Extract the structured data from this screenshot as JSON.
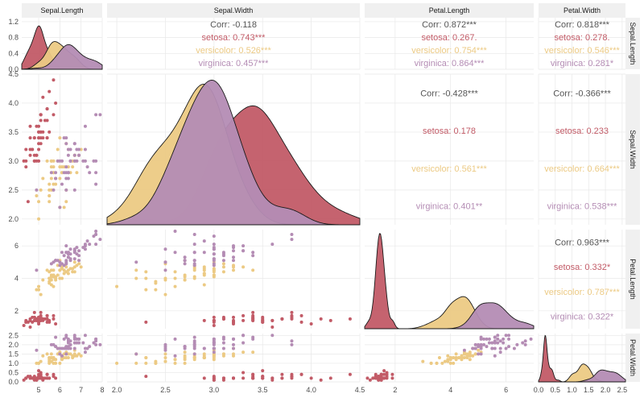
{
  "chart_data": {
    "type": "scatter-matrix",
    "variables": [
      "Sepal.Length",
      "Sepal.Width",
      "Petal.Length",
      "Petal.Width"
    ],
    "groups": [
      {
        "name": "setosa",
        "color": "#c25b67"
      },
      {
        "name": "versicolor",
        "color": "#ecca84"
      },
      {
        "name": "virginica",
        "color": "#b48cb4"
      }
    ],
    "ranges": {
      "Sepal.Length": [
        4.2,
        8.0
      ],
      "Sepal.Width": [
        1.9,
        4.5
      ],
      "Petal.Length": [
        0.9,
        7.0
      ],
      "Petal.Width": [
        0.0,
        2.6
      ]
    },
    "ticks": {
      "Sepal.Length": [
        "5",
        "6",
        "7",
        "8"
      ],
      "Sepal.Width": [
        "2.0",
        "2.5",
        "3.0",
        "3.5",
        "4.0",
        "4.5"
      ],
      "Petal.Length": [
        "2",
        "4",
        "6"
      ],
      "Petal.Width": [
        "0.0",
        "0.5",
        "1.0",
        "1.5",
        "2.0",
        "2.5"
      ]
    },
    "density_ticks": [
      "0.0",
      "0.4",
      "0.8",
      "1.2"
    ],
    "density_max": 1.3,
    "correlations": [
      {
        "row": 0,
        "col": 1,
        "labels": [
          "Corr: -0.118",
          "setosa: 0.743***",
          "versicolor: 0.526***",
          "virginica: 0.457***"
        ]
      },
      {
        "row": 0,
        "col": 2,
        "labels": [
          "Corr: 0.872***",
          "setosa: 0.267.",
          "versicolor: 0.754***",
          "virginica: 0.864***"
        ]
      },
      {
        "row": 0,
        "col": 3,
        "labels": [
          "Corr: 0.818***",
          "setosa: 0.278.",
          "versicolor: 0.546***",
          "virginica: 0.281*"
        ]
      },
      {
        "row": 1,
        "col": 2,
        "labels": [
          "Corr: -0.428***",
          "setosa: 0.178",
          "versicolor: 0.561***",
          "virginica: 0.401**"
        ]
      },
      {
        "row": 1,
        "col": 3,
        "labels": [
          "Corr: -0.366***",
          "setosa: 0.233",
          "versicolor: 0.664***",
          "virginica: 0.538***"
        ]
      },
      {
        "row": 2,
        "col": 3,
        "labels": [
          "Corr: 0.963***",
          "setosa: 0.332*",
          "versicolor: 0.787***",
          "virginica: 0.322*"
        ]
      }
    ],
    "data": {
      "setosa": [
        [
          5.1,
          3.5,
          1.4,
          0.2
        ],
        [
          4.9,
          3.0,
          1.4,
          0.2
        ],
        [
          4.7,
          3.2,
          1.3,
          0.2
        ],
        [
          4.6,
          3.1,
          1.5,
          0.2
        ],
        [
          5.0,
          3.6,
          1.4,
          0.2
        ],
        [
          5.4,
          3.9,
          1.7,
          0.4
        ],
        [
          4.6,
          3.4,
          1.4,
          0.3
        ],
        [
          5.0,
          3.4,
          1.5,
          0.2
        ],
        [
          4.4,
          2.9,
          1.4,
          0.2
        ],
        [
          4.9,
          3.1,
          1.5,
          0.1
        ],
        [
          5.4,
          3.7,
          1.5,
          0.2
        ],
        [
          4.8,
          3.4,
          1.6,
          0.2
        ],
        [
          4.8,
          3.0,
          1.4,
          0.1
        ],
        [
          4.3,
          3.0,
          1.1,
          0.1
        ],
        [
          5.8,
          4.0,
          1.2,
          0.2
        ],
        [
          5.7,
          4.4,
          1.5,
          0.4
        ],
        [
          5.4,
          3.9,
          1.3,
          0.4
        ],
        [
          5.1,
          3.5,
          1.4,
          0.3
        ],
        [
          5.7,
          3.8,
          1.7,
          0.3
        ],
        [
          5.1,
          3.8,
          1.5,
          0.3
        ],
        [
          5.4,
          3.4,
          1.7,
          0.2
        ],
        [
          5.1,
          3.7,
          1.5,
          0.4
        ],
        [
          4.6,
          3.6,
          1.0,
          0.2
        ],
        [
          5.1,
          3.3,
          1.7,
          0.5
        ],
        [
          4.8,
          3.4,
          1.9,
          0.2
        ],
        [
          5.0,
          3.0,
          1.6,
          0.2
        ],
        [
          5.0,
          3.4,
          1.6,
          0.4
        ],
        [
          5.2,
          3.5,
          1.5,
          0.2
        ],
        [
          5.2,
          3.4,
          1.4,
          0.2
        ],
        [
          4.7,
          3.2,
          1.6,
          0.2
        ],
        [
          4.8,
          3.1,
          1.6,
          0.2
        ],
        [
          5.4,
          3.4,
          1.5,
          0.4
        ],
        [
          5.2,
          4.1,
          1.5,
          0.1
        ],
        [
          5.5,
          4.2,
          1.4,
          0.2
        ],
        [
          4.9,
          3.1,
          1.5,
          0.2
        ],
        [
          5.0,
          3.2,
          1.2,
          0.2
        ],
        [
          5.5,
          3.5,
          1.3,
          0.2
        ],
        [
          4.9,
          3.6,
          1.4,
          0.1
        ],
        [
          4.4,
          3.0,
          1.3,
          0.2
        ],
        [
          5.1,
          3.4,
          1.5,
          0.2
        ],
        [
          5.0,
          3.5,
          1.3,
          0.3
        ],
        [
          4.5,
          2.3,
          1.3,
          0.3
        ],
        [
          4.4,
          3.2,
          1.3,
          0.2
        ],
        [
          5.0,
          3.5,
          1.6,
          0.6
        ],
        [
          5.1,
          3.8,
          1.9,
          0.4
        ],
        [
          4.8,
          3.0,
          1.4,
          0.3
        ],
        [
          5.1,
          3.8,
          1.6,
          0.2
        ],
        [
          4.6,
          3.2,
          1.4,
          0.2
        ],
        [
          5.3,
          3.7,
          1.5,
          0.2
        ],
        [
          5.0,
          3.3,
          1.4,
          0.2
        ]
      ],
      "versicolor": [
        [
          7.0,
          3.2,
          4.7,
          1.4
        ],
        [
          6.4,
          3.2,
          4.5,
          1.5
        ],
        [
          6.9,
          3.1,
          4.9,
          1.5
        ],
        [
          5.5,
          2.3,
          4.0,
          1.3
        ],
        [
          6.5,
          2.8,
          4.6,
          1.5
        ],
        [
          5.7,
          2.8,
          4.5,
          1.3
        ],
        [
          6.3,
          3.3,
          4.7,
          1.6
        ],
        [
          4.9,
          2.4,
          3.3,
          1.0
        ],
        [
          6.6,
          2.9,
          4.6,
          1.3
        ],
        [
          5.2,
          2.7,
          3.9,
          1.4
        ],
        [
          5.0,
          2.0,
          3.5,
          1.0
        ],
        [
          5.9,
          3.0,
          4.2,
          1.5
        ],
        [
          6.0,
          2.2,
          4.0,
          1.0
        ],
        [
          6.1,
          2.9,
          4.7,
          1.4
        ],
        [
          5.6,
          2.9,
          3.6,
          1.3
        ],
        [
          6.7,
          3.1,
          4.4,
          1.4
        ],
        [
          5.6,
          3.0,
          4.5,
          1.5
        ],
        [
          5.8,
          2.7,
          4.1,
          1.0
        ],
        [
          6.2,
          2.2,
          4.5,
          1.5
        ],
        [
          5.6,
          2.5,
          3.9,
          1.1
        ],
        [
          5.9,
          3.2,
          4.8,
          1.8
        ],
        [
          6.1,
          2.8,
          4.0,
          1.3
        ],
        [
          6.3,
          2.5,
          4.9,
          1.5
        ],
        [
          6.1,
          2.8,
          4.7,
          1.2
        ],
        [
          6.4,
          2.9,
          4.3,
          1.3
        ],
        [
          6.6,
          3.0,
          4.4,
          1.4
        ],
        [
          6.8,
          2.8,
          4.8,
          1.4
        ],
        [
          6.7,
          3.0,
          5.0,
          1.7
        ],
        [
          6.0,
          2.9,
          4.5,
          1.5
        ],
        [
          5.7,
          2.6,
          3.5,
          1.0
        ],
        [
          5.5,
          2.4,
          3.8,
          1.1
        ],
        [
          5.5,
          2.4,
          3.7,
          1.0
        ],
        [
          5.8,
          2.7,
          3.9,
          1.2
        ],
        [
          6.0,
          2.7,
          5.1,
          1.6
        ],
        [
          5.4,
          3.0,
          4.5,
          1.5
        ],
        [
          6.0,
          3.4,
          4.5,
          1.6
        ],
        [
          6.7,
          3.1,
          4.7,
          1.5
        ],
        [
          6.3,
          2.3,
          4.4,
          1.3
        ],
        [
          5.6,
          3.0,
          4.1,
          1.3
        ],
        [
          5.5,
          2.5,
          4.0,
          1.3
        ],
        [
          5.5,
          2.6,
          4.4,
          1.2
        ],
        [
          6.1,
          3.0,
          4.6,
          1.4
        ],
        [
          5.8,
          2.6,
          4.0,
          1.2
        ],
        [
          5.0,
          2.3,
          3.3,
          1.0
        ],
        [
          5.6,
          2.7,
          4.2,
          1.3
        ],
        [
          5.7,
          3.0,
          4.2,
          1.2
        ],
        [
          5.7,
          2.9,
          4.2,
          1.3
        ],
        [
          6.2,
          2.9,
          4.3,
          1.3
        ],
        [
          5.1,
          2.5,
          3.0,
          1.1
        ],
        [
          5.7,
          2.8,
          4.1,
          1.3
        ]
      ],
      "virginica": [
        [
          6.3,
          3.3,
          6.0,
          2.5
        ],
        [
          5.8,
          2.7,
          5.1,
          1.9
        ],
        [
          7.1,
          3.0,
          5.9,
          2.1
        ],
        [
          6.3,
          2.9,
          5.6,
          1.8
        ],
        [
          6.5,
          3.0,
          5.8,
          2.2
        ],
        [
          7.6,
          3.0,
          6.6,
          2.1
        ],
        [
          4.9,
          2.5,
          4.5,
          1.7
        ],
        [
          7.3,
          2.9,
          6.3,
          1.8
        ],
        [
          6.7,
          2.5,
          5.8,
          1.8
        ],
        [
          7.2,
          3.6,
          6.1,
          2.5
        ],
        [
          6.5,
          3.2,
          5.1,
          2.0
        ],
        [
          6.4,
          2.7,
          5.3,
          1.9
        ],
        [
          6.8,
          3.0,
          5.5,
          2.1
        ],
        [
          5.7,
          2.5,
          5.0,
          2.0
        ],
        [
          5.8,
          2.8,
          5.1,
          2.4
        ],
        [
          6.4,
          3.2,
          5.3,
          2.3
        ],
        [
          6.5,
          3.0,
          5.5,
          1.8
        ],
        [
          7.7,
          3.8,
          6.7,
          2.2
        ],
        [
          7.7,
          2.6,
          6.9,
          2.3
        ],
        [
          6.0,
          2.2,
          5.0,
          1.5
        ],
        [
          6.9,
          3.2,
          5.7,
          2.3
        ],
        [
          5.6,
          2.8,
          4.9,
          2.0
        ],
        [
          7.7,
          2.8,
          6.7,
          2.0
        ],
        [
          6.3,
          2.7,
          4.9,
          1.8
        ],
        [
          6.7,
          3.3,
          5.7,
          2.1
        ],
        [
          7.2,
          3.2,
          6.0,
          1.8
        ],
        [
          6.2,
          2.8,
          4.8,
          1.8
        ],
        [
          6.1,
          3.0,
          4.9,
          1.8
        ],
        [
          6.4,
          2.8,
          5.6,
          2.1
        ],
        [
          7.2,
          3.0,
          5.8,
          1.6
        ],
        [
          7.4,
          2.8,
          6.1,
          1.9
        ],
        [
          7.9,
          3.8,
          6.4,
          2.0
        ],
        [
          6.4,
          2.8,
          5.6,
          2.2
        ],
        [
          6.3,
          2.8,
          5.1,
          1.5
        ],
        [
          6.1,
          2.6,
          5.6,
          1.4
        ],
        [
          7.7,
          3.0,
          6.1,
          2.3
        ],
        [
          6.3,
          3.4,
          5.6,
          2.4
        ],
        [
          6.4,
          3.1,
          5.5,
          1.8
        ],
        [
          6.0,
          3.0,
          4.8,
          1.8
        ],
        [
          6.9,
          3.1,
          5.4,
          2.1
        ],
        [
          6.7,
          3.1,
          5.6,
          2.4
        ],
        [
          6.9,
          3.1,
          5.1,
          2.3
        ],
        [
          5.8,
          2.7,
          5.1,
          1.9
        ],
        [
          6.8,
          3.2,
          5.9,
          2.3
        ],
        [
          6.7,
          3.3,
          5.7,
          2.5
        ],
        [
          6.7,
          3.0,
          5.2,
          2.3
        ],
        [
          6.3,
          2.5,
          5.0,
          1.9
        ],
        [
          6.5,
          3.0,
          5.2,
          2.0
        ],
        [
          6.2,
          3.4,
          5.4,
          2.3
        ],
        [
          5.9,
          3.0,
          5.1,
          1.8
        ]
      ]
    }
  }
}
